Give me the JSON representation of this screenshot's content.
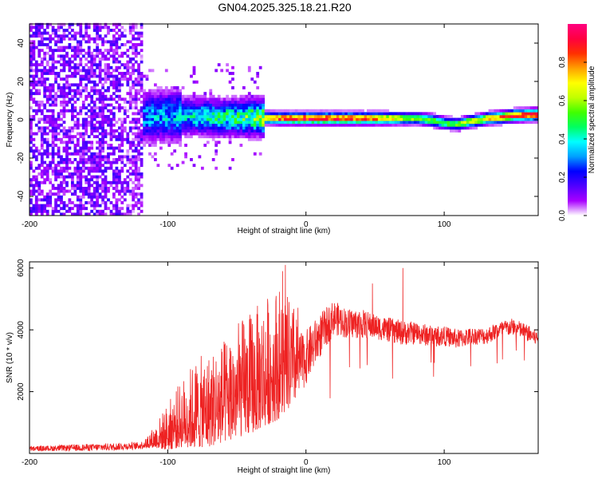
{
  "title": "GN04.2025.325.18.21.R20",
  "colorbar": {
    "label": "Normalized spectral amplitude",
    "range": [
      0,
      1
    ],
    "ticks": [
      "0.0",
      "0.2",
      "0.4",
      "0.6",
      "0.8"
    ],
    "colors": [
      "#ffffff",
      "#a800ff",
      "#5000ff",
      "#0000ff",
      "#00a0ff",
      "#00ffff",
      "#00ff60",
      "#40ff00",
      "#c0ff00",
      "#ffff00",
      "#ffa000",
      "#ff3000",
      "#ff0040",
      "#ff0080"
    ]
  },
  "chart_data": [
    {
      "type": "heatmap",
      "name": "spectrogram",
      "xlabel": "Height of straight line (km)",
      "ylabel": "Frequency (Hz)",
      "xlim": [
        -200,
        168
      ],
      "ylim": [
        -50,
        50
      ],
      "xticks": [
        "-200",
        "-100",
        "0",
        "100"
      ],
      "xtick_values": [
        -200,
        -100,
        0,
        100
      ],
      "yticks": [
        "-40",
        "-20",
        "0",
        "20",
        "40"
      ],
      "ytick_values": [
        -40,
        -20,
        0,
        20,
        40
      ],
      "ridge": {
        "x": [
          -120,
          -100,
          -80,
          -60,
          -40,
          -20,
          0,
          20,
          40,
          55,
          65,
          80,
          90,
          100,
          110,
          118,
          125,
          130,
          140,
          150,
          168
        ],
        "y": [
          0.5,
          1.5,
          1.0,
          0.5,
          0.5,
          0.0,
          0.0,
          0.0,
          0.0,
          0.0,
          0.0,
          0.0,
          -1.0,
          -2.5,
          -3.0,
          -1.5,
          -1.0,
          0.0,
          0.5,
          1.5,
          2.0
        ],
        "amp": [
          0.35,
          0.4,
          0.45,
          0.5,
          0.6,
          0.9,
          0.95,
          0.95,
          0.9,
          0.8,
          0.7,
          0.55,
          0.6,
          0.55,
          0.6,
          0.7,
          0.65,
          0.75,
          0.85,
          0.95,
          0.95
        ]
      },
      "noise_region_x": [
        -200,
        -118
      ],
      "broadband_region_x": [
        -120,
        -30
      ]
    },
    {
      "type": "line",
      "name": "snr",
      "xlabel": "Height of straight line (km)",
      "ylabel": "SNR (10 * v/v)",
      "color": "#ee2222",
      "xlim": [
        -200,
        168
      ],
      "ylim": [
        0,
        6200
      ],
      "xticks": [
        "-200",
        "-100",
        "0",
        "100"
      ],
      "xtick_values": [
        -200,
        -100,
        0,
        100
      ],
      "yticks": [
        "2000",
        "4000",
        "6000"
      ],
      "ytick_values": [
        2000,
        4000,
        6000
      ],
      "envelope": {
        "x": [
          -200,
          -150,
          -120,
          -110,
          -100,
          -90,
          -80,
          -70,
          -60,
          -50,
          -40,
          -30,
          -20,
          -10,
          0,
          10,
          20,
          30,
          40,
          50,
          60,
          70,
          80,
          90,
          100,
          110,
          120,
          130,
          140,
          150,
          160,
          168
        ],
        "mean": [
          150,
          200,
          250,
          400,
          600,
          900,
          1100,
          1200,
          1400,
          1700,
          1900,
          2200,
          2500,
          2600,
          3100,
          3800,
          4400,
          4200,
          4200,
          4100,
          4000,
          3900,
          3900,
          3800,
          3800,
          3700,
          3800,
          3800,
          4000,
          4100,
          3900,
          3700
        ],
        "spread": [
          100,
          150,
          150,
          300,
          700,
          1000,
          1300,
          1400,
          1500,
          1700,
          1800,
          1900,
          2000,
          1500,
          1100,
          900,
          700,
          600,
          600,
          500,
          500,
          500,
          450,
          450,
          400,
          400,
          350,
          350,
          350,
          350,
          350,
          300
        ]
      },
      "spikes": [
        {
          "x": -15,
          "y": 6100
        },
        {
          "x": -17,
          "y": 5900
        },
        {
          "x": 70,
          "y": 6000
        },
        {
          "x": -35,
          "y": 4500
        },
        {
          "x": 48,
          "y": 5500
        }
      ]
    }
  ]
}
